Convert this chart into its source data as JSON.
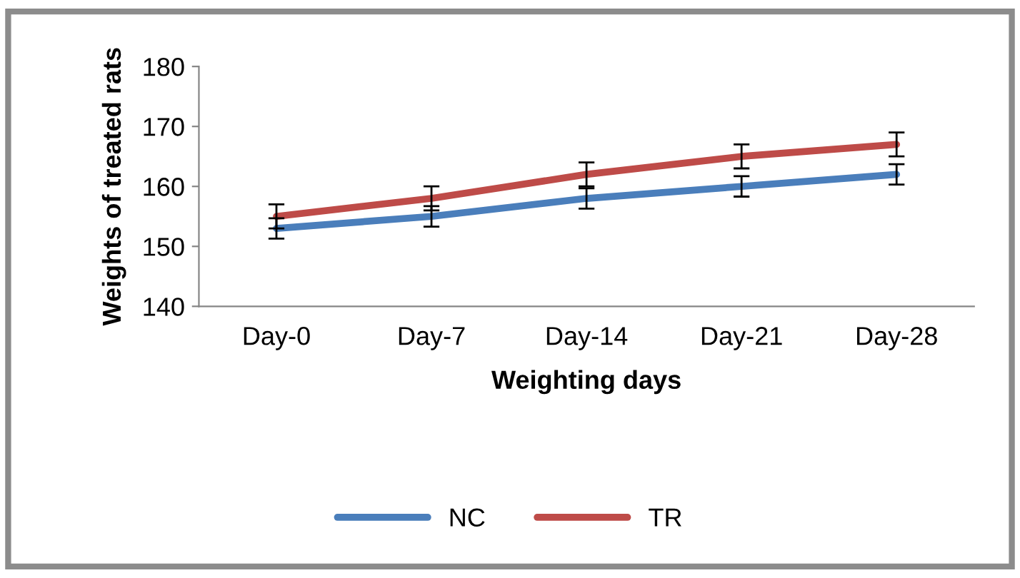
{
  "chart_data": {
    "type": "line",
    "xlabel": "Weighting days",
    "ylabel": "Weights of treated rats",
    "categories": [
      "Day-0",
      "Day-7",
      "Day-14",
      "Day-21",
      "Day-28"
    ],
    "series": [
      {
        "name": "NC",
        "color": "#4a7ebb",
        "values": [
          153,
          155,
          158,
          160,
          162
        ],
        "errors": [
          1.7,
          1.7,
          1.7,
          1.7,
          1.7
        ]
      },
      {
        "name": "TR",
        "color": "#be4b48",
        "values": [
          155,
          158,
          162,
          165,
          167
        ],
        "errors": [
          2,
          2,
          2,
          2,
          2
        ]
      }
    ],
    "ylim": [
      140,
      180
    ],
    "yticks": [
      140,
      150,
      160,
      170,
      180
    ],
    "grid": false,
    "legend": "bottom",
    "marker": "none",
    "line_style": "solid"
  }
}
